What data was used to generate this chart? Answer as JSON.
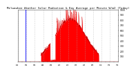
{
  "title": "Milwaukee Weather Solar Radiation & Day Average per Minute W/m2 (Today)",
  "bg_color": "#ffffff",
  "plot_bg_color": "#ffffff",
  "grid_color": "#aaaaaa",
  "fill_color": "#ff0000",
  "line_color": "#cc0000",
  "blue_line_x": 105,
  "blue_line_color": "#0000ff",
  "ylim": [
    0,
    1000
  ],
  "xlim": [
    0,
    1440
  ],
  "yticks": [
    100,
    200,
    300,
    400,
    500,
    600,
    700,
    800,
    900,
    1000
  ],
  "title_fontsize": 3.0,
  "seed": 12345
}
